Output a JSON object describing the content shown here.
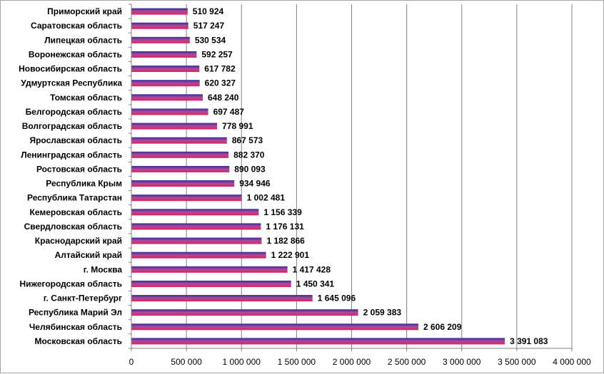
{
  "chart_data": {
    "type": "bar",
    "orientation": "horizontal",
    "categories": [
      "Приморский край",
      "Саратовская область",
      "Липецкая область",
      "Воронежская область",
      "Новосибирская область",
      "Удмуртская Республика",
      "Томская область",
      "Белгородская область",
      "Волгоградская область",
      "Ярославская область",
      "Ленинградская область",
      "Ростовская область",
      "Республика Крым",
      "Республика Татарстан",
      "Кемеровская область",
      "Свердловская область",
      "Краснодарский край",
      "Алтайский край",
      "г. Москва",
      "Нижегородская область",
      "г. Санкт-Петербург",
      "Республика Марий Эл",
      "Челябинская область",
      "Московская область"
    ],
    "values": [
      510924,
      517247,
      530534,
      592257,
      617782,
      620327,
      648240,
      697487,
      778991,
      867573,
      882370,
      890093,
      934946,
      1002481,
      1156339,
      1176131,
      1182866,
      1222901,
      1417428,
      1450341,
      1645096,
      2059383,
      2606209,
      3391083
    ],
    "value_labels": [
      "510 924",
      "517 247",
      "530 534",
      "592 257",
      "617 782",
      "620 327",
      "648 240",
      "697 487",
      "778 991",
      "867 573",
      "882 370",
      "890 093",
      "934 946",
      "1 002 481",
      "1 156 339",
      "1 176 131",
      "1 182 866",
      "1 222 901",
      "1 417 428",
      "1 450 341",
      "1 645 096",
      "2 059 383",
      "2 606 209",
      "3 391 083"
    ],
    "x_ticks": [
      0,
      500000,
      1000000,
      1500000,
      2000000,
      2500000,
      3000000,
      3500000,
      4000000
    ],
    "x_tick_labels": [
      "0",
      "500 000",
      "1 000 000",
      "1 500 000",
      "2 000 000",
      "2 500 000",
      "3 000 000",
      "3 500 000",
      "4 000 000"
    ],
    "xlim": [
      0,
      4000000
    ],
    "title": "",
    "xlabel": "",
    "ylabel": "",
    "grid": "vertical",
    "legend": "none",
    "colors": {
      "bar_top": "#3a2a9c",
      "bar_bottom": "#e0205a",
      "bar_mid": "#b04a98",
      "gridline": "#808080",
      "axis": "#808080"
    }
  }
}
